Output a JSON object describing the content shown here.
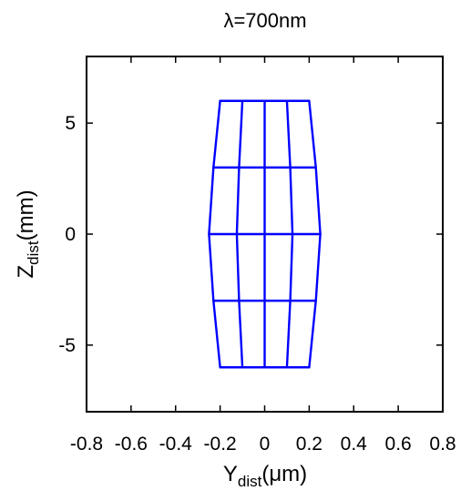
{
  "chart_data": {
    "type": "line",
    "title": "λ=700nm",
    "xlabel": {
      "main": "Y",
      "sub": "dist",
      "unit": "(μm)"
    },
    "ylabel": {
      "main": "Z",
      "sub": "dist",
      "unit": "(mm)"
    },
    "xlim": [
      -0.8,
      0.8
    ],
    "ylim": [
      -8,
      8
    ],
    "xticks": [
      -0.8,
      -0.6,
      -0.4,
      -0.2,
      0,
      0.2,
      0.4,
      0.6,
      0.8
    ],
    "xtick_labels": [
      "-0.8",
      "-0.6",
      "-0.4",
      "-0.2",
      "0",
      "0.2",
      "0.4",
      "0.6",
      "0.8"
    ],
    "yticks": [
      -5,
      0,
      5
    ],
    "ytick_labels": [
      "-5",
      "0",
      "5"
    ],
    "grid": false,
    "color": "#0000ff",
    "series": [
      {
        "values": [
          [
            -0.2,
            6
          ],
          [
            -0.1,
            6
          ],
          [
            0.0,
            6
          ],
          [
            0.1,
            6
          ],
          [
            0.2,
            6
          ]
        ]
      },
      {
        "values": [
          [
            -0.23,
            3
          ],
          [
            -0.115,
            3
          ],
          [
            0.0,
            3
          ],
          [
            0.115,
            3
          ],
          [
            0.23,
            3
          ]
        ]
      },
      {
        "values": [
          [
            -0.25,
            0
          ],
          [
            -0.125,
            0
          ],
          [
            0.0,
            0
          ],
          [
            0.125,
            0
          ],
          [
            0.25,
            0
          ]
        ]
      },
      {
        "values": [
          [
            -0.23,
            -3
          ],
          [
            -0.115,
            -3
          ],
          [
            0.0,
            -3
          ],
          [
            0.115,
            -3
          ],
          [
            0.23,
            -3
          ]
        ]
      },
      {
        "values": [
          [
            -0.2,
            -6
          ],
          [
            -0.1,
            -6
          ],
          [
            0.0,
            -6
          ],
          [
            0.1,
            -6
          ],
          [
            0.2,
            -6
          ]
        ]
      },
      {
        "values": [
          [
            -0.2,
            6
          ],
          [
            -0.23,
            3
          ],
          [
            -0.25,
            0
          ],
          [
            -0.23,
            -3
          ],
          [
            -0.2,
            -6
          ]
        ]
      },
      {
        "values": [
          [
            -0.1,
            6
          ],
          [
            -0.115,
            3
          ],
          [
            -0.125,
            0
          ],
          [
            -0.115,
            -3
          ],
          [
            -0.1,
            -6
          ]
        ]
      },
      {
        "values": [
          [
            0.0,
            6
          ],
          [
            0.0,
            3
          ],
          [
            0.0,
            0
          ],
          [
            0.0,
            -3
          ],
          [
            0.0,
            -6
          ]
        ]
      },
      {
        "values": [
          [
            0.1,
            6
          ],
          [
            0.115,
            3
          ],
          [
            0.125,
            0
          ],
          [
            0.115,
            -3
          ],
          [
            0.1,
            -6
          ]
        ]
      },
      {
        "values": [
          [
            0.2,
            6
          ],
          [
            0.23,
            3
          ],
          [
            0.25,
            0
          ],
          [
            0.23,
            -3
          ],
          [
            0.2,
            -6
          ]
        ]
      }
    ]
  }
}
